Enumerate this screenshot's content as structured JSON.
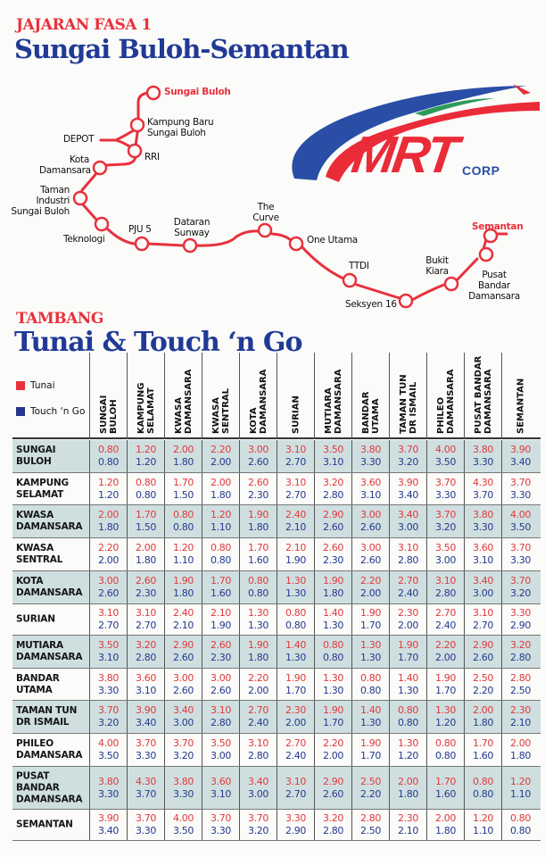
{
  "header": {
    "kicker": "JAJARAN FASA 1",
    "title": "Sungai Buloh-Semantan"
  },
  "map": {
    "line_color": "#e8313c",
    "stations": [
      {
        "name": "Sungai Buloh",
        "terminal": true
      },
      {
        "name": "Kampung Baru Sungai Buloh"
      },
      {
        "name": "DEPOT"
      },
      {
        "name": "RRI"
      },
      {
        "name": "Kota Damansara"
      },
      {
        "name": "Taman Industri Sungai Buloh"
      },
      {
        "name": "Teknologi"
      },
      {
        "name": "PJU 5"
      },
      {
        "name": "Dataran Sunway"
      },
      {
        "name": "The Curve"
      },
      {
        "name": "One Utama"
      },
      {
        "name": "TTDI"
      },
      {
        "name": "Seksyen 16"
      },
      {
        "name": "Bukit Kiara"
      },
      {
        "name": "Pusat Bandar Damansara"
      },
      {
        "name": "Semantan",
        "terminal": true
      }
    ],
    "labels": {
      "sungai_buloh": "Sungai Buloh",
      "kampung_baru": "Kampung Baru\nSungai Buloh",
      "depot": "DEPOT",
      "rri": "RRI",
      "kota_damansara": "Kota\nDamansara",
      "taman_industri": "Taman\nIndustri\nSungai Buloh",
      "teknologi": "Teknologi",
      "pju5": "PJU 5",
      "dataran_sunway": "Dataran\nSunway",
      "the_curve": "The\nCurve",
      "one_utama": "One Utama",
      "ttdi": "TTDI",
      "seksyen16": "Seksyen 16",
      "bukit_kiara": "Bukit\nKiara",
      "pusat_bandar": "Pusat\nBandar\nDamansara",
      "semantan": "Semantan"
    }
  },
  "logo": {
    "text": "MRT",
    "suffix": "CORP",
    "colors": {
      "red": "#ea2b38",
      "blue": "#2a4ea6",
      "green": "#2e9a5a"
    }
  },
  "fares": {
    "kicker": "TAMBANG",
    "title": "Tunai & Touch ‘n Go",
    "legend": [
      {
        "label": "Tunai",
        "color": "#e8313c"
      },
      {
        "label": "Touch ‘n Go",
        "color": "#27358f"
      }
    ],
    "columns": [
      "SUNGAI\nBULOH",
      "KAMPUNG\nSELAMAT",
      "KWASA\nDAMANSARA",
      "KWASA\nSENTRAL",
      "KOTA\nDAMANSARA",
      "SURIAN",
      "MUTIARA\nDAMANSARA",
      "BANDAR\nUTAMA",
      "TAMAN TUN\nDR ISMAIL",
      "PHILEO\nDAMANSARA",
      "PUSAT BANDAR\nDAMANSARA",
      "SEMANTAN"
    ],
    "rows": [
      {
        "station": "SUNGAI\nBULOH",
        "tunai": [
          "0.80",
          "1.20",
          "2.00",
          "2.20",
          "3.00",
          "3.10",
          "3.50",
          "3.80",
          "3.70",
          "4.00",
          "3.80",
          "3.90"
        ],
        "tng": [
          "0.80",
          "1.20",
          "1.80",
          "2.00",
          "2.60",
          "2.70",
          "3.10",
          "3.30",
          "3.20",
          "3.50",
          "3.30",
          "3.40"
        ]
      },
      {
        "station": "KAMPUNG\nSELAMAT",
        "tunai": [
          "1.20",
          "0.80",
          "1.70",
          "2.00",
          "2.60",
          "3.10",
          "3.20",
          "3.60",
          "3.90",
          "3.70",
          "4.30",
          "3.70"
        ],
        "tng": [
          "1.20",
          "0.80",
          "1.50",
          "1.80",
          "2.30",
          "2.70",
          "2.80",
          "3.10",
          "3.40",
          "3.30",
          "3.70",
          "3.30"
        ]
      },
      {
        "station": "KWASA\nDAMANSARA",
        "tunai": [
          "2.00",
          "1.70",
          "0.80",
          "1.20",
          "1.90",
          "2.40",
          "2.90",
          "3.00",
          "3.40",
          "3.70",
          "3.80",
          "4.00"
        ],
        "tng": [
          "1.80",
          "1.50",
          "0.80",
          "1.10",
          "1.80",
          "2.10",
          "2.60",
          "2.60",
          "3.00",
          "3.20",
          "3.30",
          "3.50"
        ]
      },
      {
        "station": "KWASA\nSENTRAL",
        "tunai": [
          "2.20",
          "2.00",
          "1.20",
          "0.80",
          "1.70",
          "2.10",
          "2.60",
          "3.00",
          "3.10",
          "3.50",
          "3.60",
          "3.70"
        ],
        "tng": [
          "2.00",
          "1.80",
          "1.10",
          "0.80",
          "1.60",
          "1.90",
          "2.30",
          "2.60",
          "2.80",
          "3.00",
          "3.10",
          "3.30"
        ]
      },
      {
        "station": "KOTA\nDAMANSARA",
        "tunai": [
          "3.00",
          "2.60",
          "1.90",
          "1.70",
          "0.80",
          "1.30",
          "1.90",
          "2.20",
          "2.70",
          "3.10",
          "3.40",
          "3.70"
        ],
        "tng": [
          "2.60",
          "2.30",
          "1.80",
          "1.60",
          "0.80",
          "1.30",
          "1.80",
          "2.00",
          "2.40",
          "2.80",
          "3.00",
          "3.20"
        ]
      },
      {
        "station": "SURIAN",
        "tunai": [
          "3.10",
          "3.10",
          "2.40",
          "2.10",
          "1.30",
          "0.80",
          "1.40",
          "1.90",
          "2.30",
          "2.70",
          "3.10",
          "3.30"
        ],
        "tng": [
          "2.70",
          "2.70",
          "2.10",
          "1.90",
          "1.30",
          "0.80",
          "1.30",
          "1.70",
          "2.00",
          "2.40",
          "2.70",
          "2.90"
        ]
      },
      {
        "station": "MUTIARA\nDAMANSARA",
        "tunai": [
          "3.50",
          "3.20",
          "2.90",
          "2.60",
          "1.90",
          "1.40",
          "0.80",
          "1.30",
          "1.90",
          "2.20",
          "2.90",
          "3.20"
        ],
        "tng": [
          "3.10",
          "2.80",
          "2.60",
          "2.30",
          "1.80",
          "1.30",
          "0.80",
          "1.30",
          "1.70",
          "2.00",
          "2.60",
          "2.80"
        ]
      },
      {
        "station": "BANDAR\nUTAMA",
        "tunai": [
          "3.80",
          "3.60",
          "3.00",
          "3.00",
          "2.20",
          "1.90",
          "1.30",
          "0.80",
          "1.40",
          "1.90",
          "2.50",
          "2.80"
        ],
        "tng": [
          "3.30",
          "3.10",
          "2.60",
          "2.60",
          "2.00",
          "1.70",
          "1.30",
          "0.80",
          "1.30",
          "1.70",
          "2.20",
          "2.50"
        ]
      },
      {
        "station": "TAMAN TUN\nDR ISMAIL",
        "tunai": [
          "3.70",
          "3.90",
          "3.40",
          "3.10",
          "2.70",
          "2.30",
          "1.90",
          "1.40",
          "0.80",
          "1.30",
          "2.00",
          "2.30"
        ],
        "tng": [
          "3.20",
          "3.40",
          "3.00",
          "2.80",
          "2.40",
          "2.00",
          "1.70",
          "1.30",
          "0.80",
          "1.20",
          "1.80",
          "2.10"
        ]
      },
      {
        "station": "PHILEO\nDAMANSARA",
        "tunai": [
          "4.00",
          "3.70",
          "3.70",
          "3.50",
          "3.10",
          "2.70",
          "2.20",
          "1.90",
          "1.30",
          "0.80",
          "1.70",
          "2.00"
        ],
        "tng": [
          "3.50",
          "3.30",
          "3.20",
          "3.00",
          "2.80",
          "2.40",
          "2.00",
          "1.70",
          "1.20",
          "0.80",
          "1.60",
          "1.80"
        ]
      },
      {
        "station": "PUSAT\nBANDAR\nDAMANSARA",
        "tunai": [
          "3.80",
          "4.30",
          "3.80",
          "3.60",
          "3.40",
          "3.10",
          "2.90",
          "2.50",
          "2.00",
          "1.70",
          "0.80",
          "1.20"
        ],
        "tng": [
          "3.30",
          "3.70",
          "3.30",
          "3.10",
          "3.00",
          "2.70",
          "2.60",
          "2.20",
          "1.80",
          "1.60",
          "0.80",
          "1.10"
        ]
      },
      {
        "station": "SEMANTAN",
        "tunai": [
          "3.90",
          "3.70",
          "4.00",
          "3.70",
          "3.70",
          "3.30",
          "3.20",
          "2.80",
          "2.30",
          "2.00",
          "1.20",
          "0.80"
        ],
        "tng": [
          "3.40",
          "3.30",
          "3.50",
          "3.30",
          "3.20",
          "2.90",
          "2.80",
          "2.50",
          "2.10",
          "1.80",
          "1.10",
          "0.80"
        ]
      }
    ]
  }
}
